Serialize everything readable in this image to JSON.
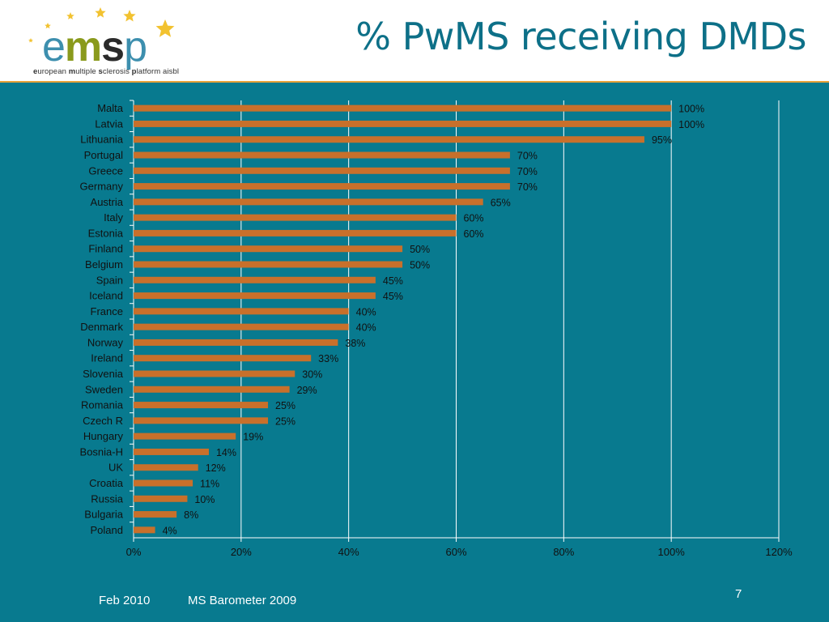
{
  "slide": {
    "title": "% PwMS receiving DMDs",
    "footer_date": "Feb 2010",
    "footer_source": "MS Barometer 2009",
    "page_number": "7"
  },
  "logo": {
    "word": [
      "e",
      "m",
      "s",
      "p"
    ],
    "tagline": [
      {
        "text": "e",
        "bold": true
      },
      {
        "text": "uropean ",
        "bold": false
      },
      {
        "text": "m",
        "bold": true
      },
      {
        "text": "ultiple ",
        "bold": false
      },
      {
        "text": "s",
        "bold": true
      },
      {
        "text": "clerosis ",
        "bold": false
      },
      {
        "text": "p",
        "bold": true
      },
      {
        "text": "latform aisbl",
        "bold": false
      }
    ]
  },
  "colors": {
    "background": "#087a8f",
    "bar": "#c8702b",
    "grid": "#ffffff",
    "text_dark": "#111111",
    "title": "#0d7088",
    "header_rule": "#e8a33a",
    "star": "#f2c230"
  },
  "chart_data": {
    "type": "bar",
    "orientation": "horizontal",
    "title": "",
    "xlabel": "",
    "ylabel": "",
    "xlim": [
      0,
      120
    ],
    "x_tick_labels": [
      "0%",
      "20%",
      "40%",
      "60%",
      "80%",
      "100%",
      "120%"
    ],
    "grid": true,
    "legend": "none",
    "categories": [
      "Malta",
      "Latvia",
      "Lithuania",
      "Portugal",
      "Greece",
      "Germany",
      "Austria",
      "Italy",
      "Estonia",
      "Finland",
      "Belgium",
      "Spain",
      "Iceland",
      "France",
      "Denmark",
      "Norway",
      "Ireland",
      "Slovenia",
      "Sweden",
      "Romania",
      "Czech R",
      "Hungary",
      "Bosnia-H",
      "UK",
      "Croatia",
      "Russia",
      "Bulgaria",
      "Poland"
    ],
    "values": [
      100,
      100,
      95,
      70,
      70,
      70,
      65,
      60,
      60,
      50,
      50,
      45,
      45,
      40,
      40,
      38,
      33,
      30,
      29,
      25,
      25,
      19,
      14,
      12,
      11,
      10,
      8,
      4
    ],
    "value_labels": [
      "100%",
      "100%",
      "95%",
      "70%",
      "70%",
      "70%",
      "65%",
      "60%",
      "60%",
      "50%",
      "50%",
      "45%",
      "45%",
      "40%",
      "40%",
      "38%",
      "33%",
      "30%",
      "29%",
      "25%",
      "25%",
      "19%",
      "14%",
      "12%",
      "11%",
      "10%",
      "8%",
      "4%"
    ]
  }
}
